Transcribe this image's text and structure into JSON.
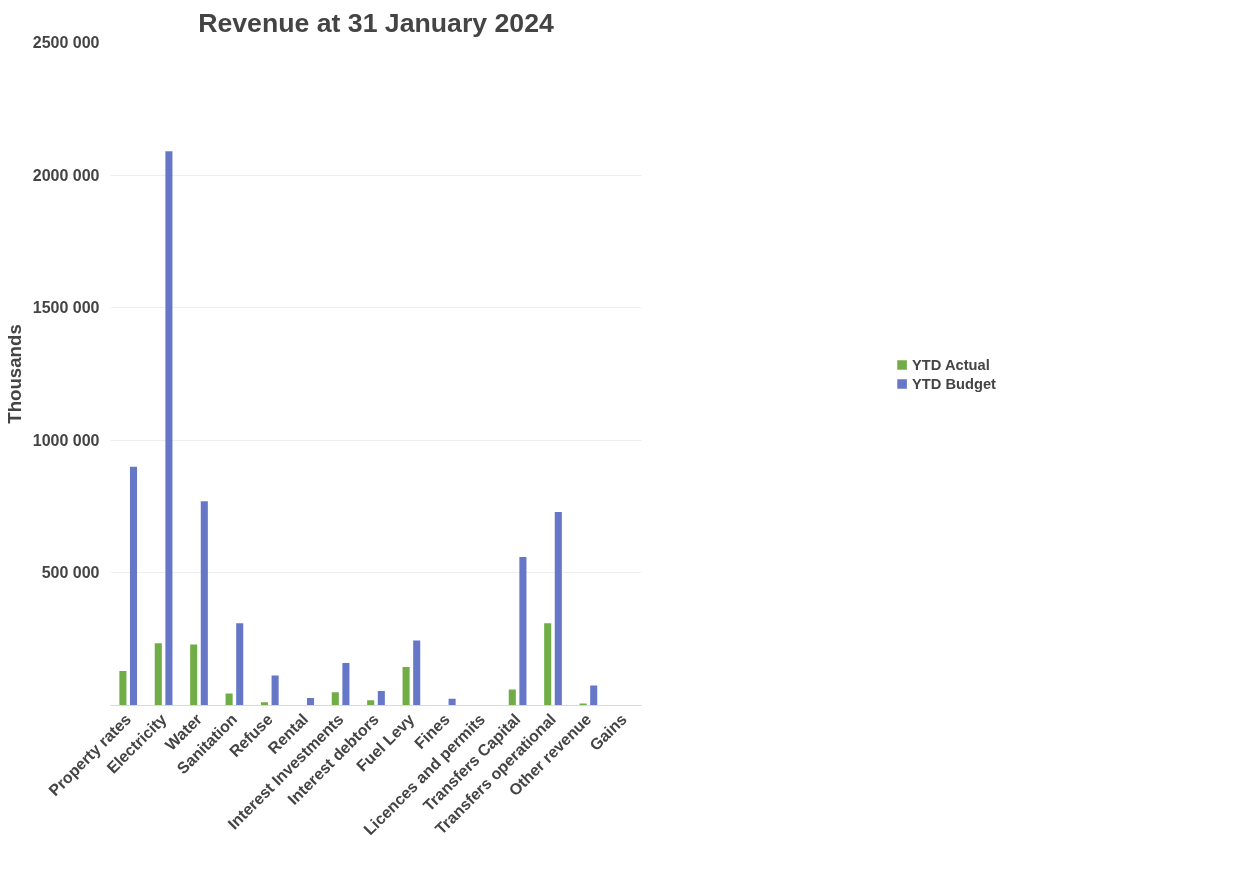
{
  "chart_data": {
    "type": "bar",
    "title": "Revenue at 31 January 2024",
    "ylabel": "Thousands",
    "categories": [
      "Property rates",
      "Electricity",
      "Water",
      "Sanitation",
      "Refuse",
      "Rental",
      "Interest Investments",
      "Interest debtors",
      "Fuel Levy",
      "Fines",
      "Licences and permits",
      "Transfers Capital",
      "Transfers operational",
      "Other revenue",
      "Gains"
    ],
    "series": [
      {
        "name": "YTD Actual",
        "color": "#70ad47",
        "values": [
          130000,
          235000,
          230000,
          45000,
          12000,
          null,
          50000,
          20000,
          145000,
          null,
          0,
          60000,
          310000,
          8000,
          0
        ]
      },
      {
        "name": "YTD Budget",
        "color": "#6677c8",
        "values": [
          900000,
          2090000,
          770000,
          310000,
          113000,
          28000,
          160000,
          55000,
          245000,
          25000,
          0,
          560000,
          730000,
          75000,
          0
        ]
      }
    ],
    "ylim": [
      0,
      2500000
    ],
    "yticks": [
      {
        "value": 0,
        "label": null
      },
      {
        "value": 500000,
        "label": "500 000"
      },
      {
        "value": 1000000,
        "label": "1000 000"
      },
      {
        "value": 1500000,
        "label": "1500 000"
      },
      {
        "value": 2000000,
        "label": "2000 000"
      },
      {
        "value": 2500000,
        "label": "2500 000"
      }
    ],
    "grid": "y",
    "legend": "right"
  }
}
